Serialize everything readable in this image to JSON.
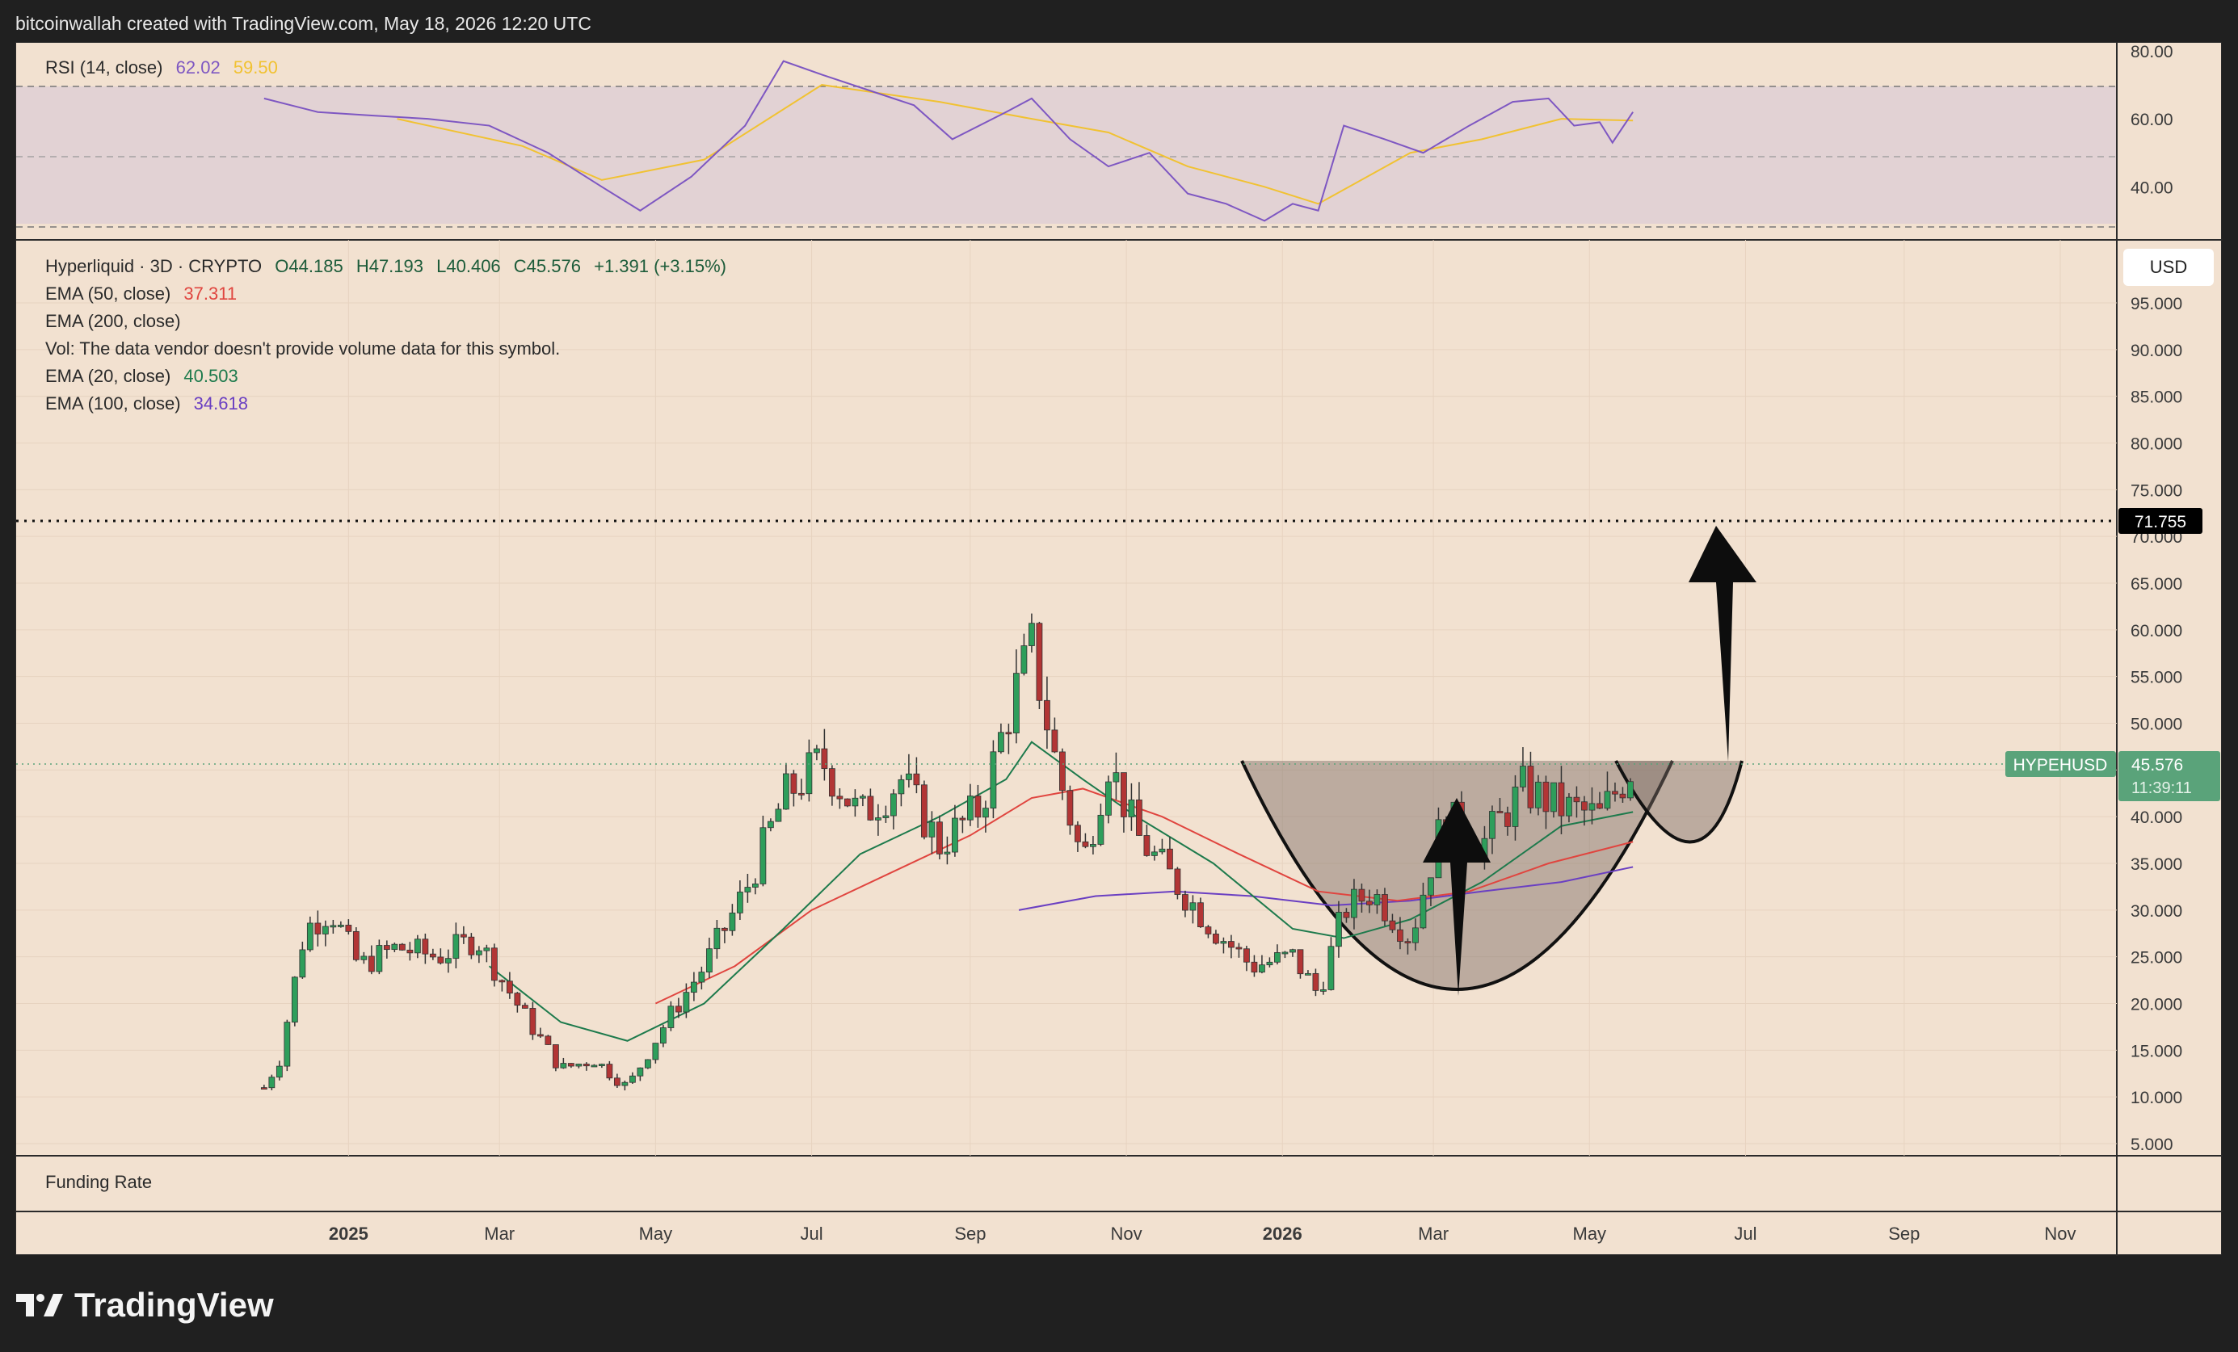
{
  "header": {
    "attribution": "bitcoinwallah created with TradingView.com, May 18, 2026 12:20 UTC"
  },
  "rsi_legend": {
    "label": "RSI (14, close)",
    "rsi": "62.02",
    "ma": "59.50"
  },
  "price_legend": {
    "symbol_line": "Hyperliquid · 3D · CRYPTO",
    "open": "O44.185",
    "high": "H47.193",
    "low": "L40.406",
    "close": "C45.576",
    "change": "+1.391 (+3.15%)",
    "ema50_label": "EMA (50, close)",
    "ema50_value": "37.311",
    "ema200_label": "EMA (200, close)",
    "vol_note": "Vol: The data vendor doesn't provide volume data for this symbol.",
    "ema20_label": "EMA (20, close)",
    "ema20_value": "40.503",
    "ema100_label": "EMA (100, close)",
    "ema100_value": "34.618"
  },
  "funding_pane": {
    "label": "Funding Rate"
  },
  "currency_button": "USD",
  "price_tag": {
    "symbol": "HYPEHUSD",
    "price": "45.576",
    "countdown": "11:39:11"
  },
  "target_tag": "71.755",
  "footer": {
    "brand": "TradingView"
  },
  "colors": {
    "background": "#f2e1d0",
    "up": "#2e9e5b",
    "down": "#b23535",
    "ema20": "#1d7a4c",
    "ema50": "#e0453f",
    "ema100": "#6a3fc2",
    "rsi": "#7e57c2",
    "rsi_ma": "#f1c232",
    "tag_green": "#5aa37a"
  },
  "chart_data": [
    {
      "type": "line",
      "title": "RSI (14, close)",
      "ylim": [
        27,
        80
      ],
      "y_ticks": [
        "80.00",
        "60.00",
        "40.00"
      ],
      "bands": {
        "upper": 70,
        "middle": 50,
        "lower": 30
      },
      "series": [
        {
          "name": "RSI",
          "x": [
            "2024-11-29",
            "2024-12-20",
            "2025-01-10",
            "2025-02-01",
            "2025-02-25",
            "2025-03-20",
            "2025-04-10",
            "2025-04-25",
            "2025-05-15",
            "2025-06-05",
            "2025-06-20",
            "2025-07-05",
            "2025-07-25",
            "2025-08-10",
            "2025-08-25",
            "2025-09-15",
            "2025-09-25",
            "2025-10-10",
            "2025-10-25",
            "2025-11-10",
            "2025-11-25",
            "2025-12-10",
            "2025-12-25",
            "2026-01-05",
            "2026-01-15",
            "2026-01-25",
            "2026-02-10",
            "2026-02-25",
            "2026-03-15",
            "2026-04-01",
            "2026-04-15",
            "2026-04-25",
            "2026-05-05",
            "2026-05-10",
            "2026-05-18"
          ],
          "values": [
            66,
            62,
            61,
            60,
            58,
            50,
            40,
            33,
            43,
            58,
            77,
            73,
            68,
            64,
            54,
            62,
            66,
            54,
            46,
            50,
            38,
            35,
            30,
            35,
            33,
            58,
            54,
            50,
            58,
            65,
            66,
            58,
            59,
            53,
            62
          ]
        },
        {
          "name": "RSI MA",
          "x": [
            "2025-01-20",
            "2025-03-10",
            "2025-04-10",
            "2025-05-20",
            "2025-07-05",
            "2025-08-20",
            "2025-09-25",
            "2025-10-25",
            "2025-11-25",
            "2025-12-25",
            "2026-01-15",
            "2026-02-20",
            "2026-03-20",
            "2026-04-20",
            "2026-05-18"
          ],
          "values": [
            60,
            52,
            42,
            48,
            70,
            65,
            60,
            56,
            46,
            40,
            35,
            50,
            54,
            60,
            59.5
          ]
        }
      ]
    },
    {
      "type": "candlestick",
      "title": "Hyperliquid · 3D · CRYPTO",
      "ylim": [
        5,
        100
      ],
      "y_ticks": [
        "95.000",
        "90.000",
        "85.000",
        "80.000",
        "75.000",
        "70.000",
        "65.000",
        "60.000",
        "55.000",
        "50.000",
        "45.000",
        "40.000",
        "35.000",
        "30.000",
        "25.000",
        "20.000",
        "15.000",
        "10.000",
        "5.000"
      ],
      "x_ticks": [
        "2025",
        "Mar",
        "May",
        "Jul",
        "Sep",
        "Nov",
        "2026",
        "Mar",
        "May",
        "Jul",
        "Sep",
        "Nov"
      ],
      "series": [
        {
          "name": "HYPEHUSD close",
          "x": [
            "2024-11-29",
            "2024-12-05",
            "2024-12-15",
            "2024-12-25",
            "2025-01-05",
            "2025-01-20",
            "2025-02-05",
            "2025-02-20",
            "2025-03-10",
            "2025-03-25",
            "2025-04-07",
            "2025-04-20",
            "2025-05-05",
            "2025-05-20",
            "2025-06-05",
            "2025-06-20",
            "2025-07-05",
            "2025-07-20",
            "2025-08-05",
            "2025-08-20",
            "2025-09-05",
            "2025-09-18",
            "2025-09-25",
            "2025-10-05",
            "2025-10-15",
            "2025-10-25",
            "2025-11-05",
            "2025-11-20",
            "2025-12-05",
            "2025-12-20",
            "2026-01-05",
            "2026-01-15",
            "2026-01-25",
            "2026-02-05",
            "2026-02-20",
            "2026-03-05",
            "2026-03-20",
            "2026-04-05",
            "2026-04-20",
            "2026-05-05",
            "2026-05-18"
          ],
          "values": [
            11,
            14,
            28,
            30,
            24,
            26,
            25,
            27,
            19,
            13,
            14,
            11,
            18,
            24,
            32,
            42,
            46,
            40,
            44,
            37,
            41,
            53,
            58,
            45,
            35,
            46,
            38,
            33,
            28,
            24,
            25,
            21,
            30,
            32,
            27,
            40,
            37,
            43,
            41,
            40,
            45.576
          ]
        },
        {
          "name": "EMA (20, close)",
          "x": [
            "2025-02-25",
            "2025-03-25",
            "2025-04-20",
            "2025-05-20",
            "2025-06-20",
            "2025-07-20",
            "2025-08-20",
            "2025-09-15",
            "2025-09-25",
            "2025-10-15",
            "2025-11-05",
            "2025-12-05",
            "2026-01-05",
            "2026-01-25",
            "2026-02-20",
            "2026-03-20",
            "2026-04-20",
            "2026-05-18"
          ],
          "values": [
            24,
            18,
            16,
            20,
            28,
            36,
            40,
            44,
            48,
            44,
            40,
            35,
            28,
            27,
            29,
            33,
            39,
            40.503
          ]
        },
        {
          "name": "EMA (50, close)",
          "x": [
            "2025-05-01",
            "2025-06-01",
            "2025-07-01",
            "2025-08-01",
            "2025-09-01",
            "2025-09-25",
            "2025-10-15",
            "2025-11-15",
            "2025-12-15",
            "2026-01-15",
            "2026-02-15",
            "2026-03-15",
            "2026-04-15",
            "2026-05-18"
          ],
          "values": [
            20,
            24,
            30,
            34,
            38,
            42,
            43,
            40,
            36,
            32,
            31,
            32,
            35,
            37.311
          ]
        },
        {
          "name": "EMA (100, close)",
          "x": [
            "2025-09-20",
            "2025-10-20",
            "2025-11-20",
            "2025-12-20",
            "2026-01-20",
            "2026-02-20",
            "2026-03-20",
            "2026-04-20",
            "2026-05-18"
          ],
          "values": [
            30,
            31.5,
            32,
            31.5,
            30.5,
            31,
            32,
            33,
            34.618
          ]
        }
      ]
    }
  ]
}
